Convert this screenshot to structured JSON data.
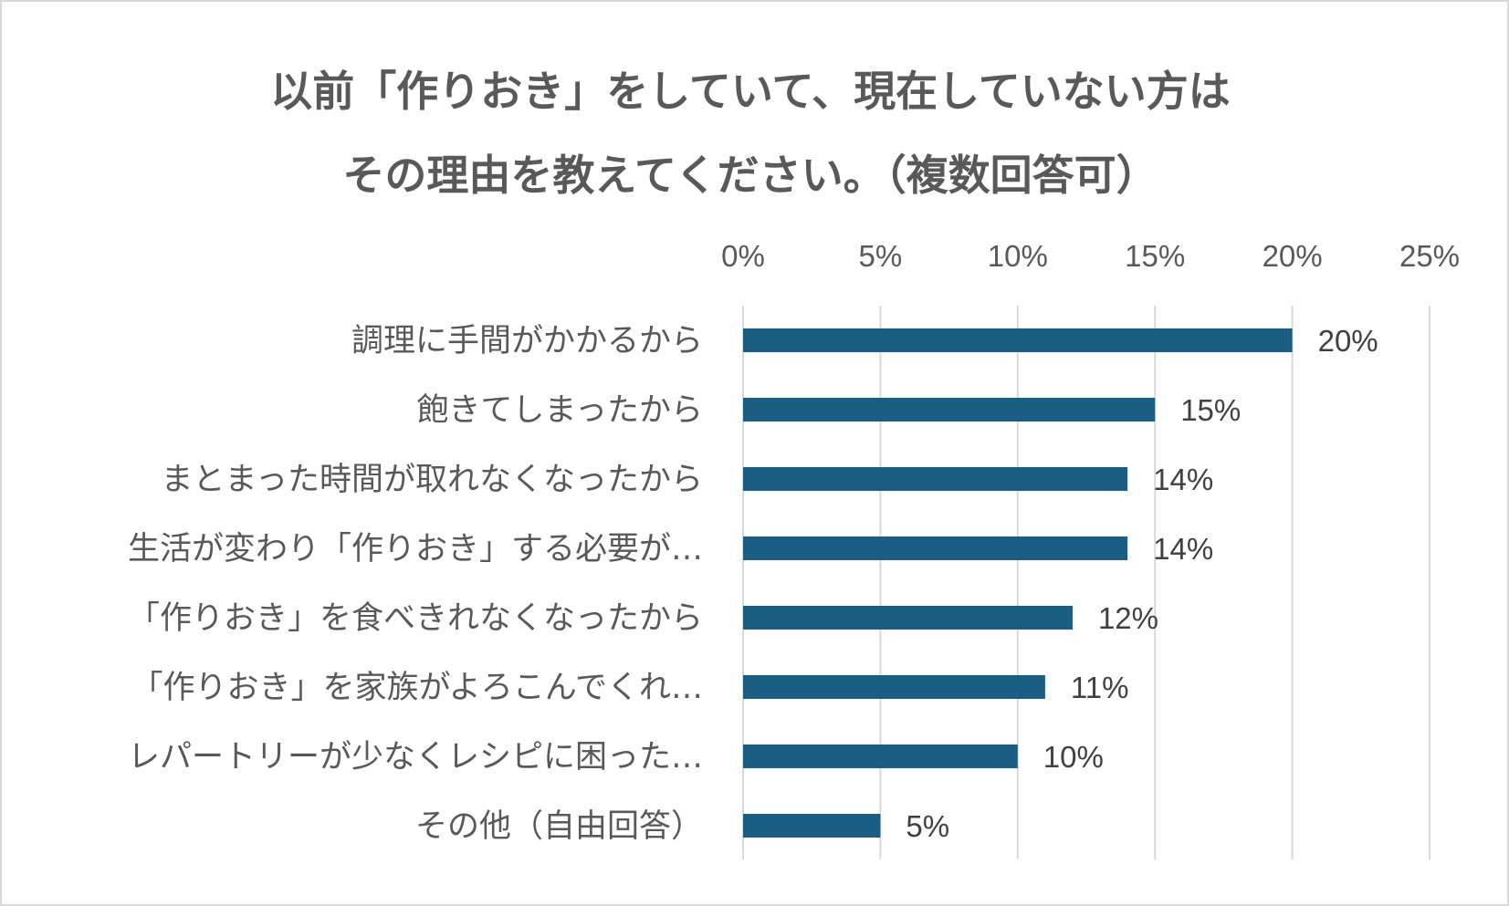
{
  "chart_data": {
    "type": "bar",
    "orientation": "horizontal",
    "title_lines": [
      "以前「作りおき」をしていて、現在していない方は",
      "その理由を教えてください。（複数回答可）"
    ],
    "categories": [
      "調理に手間がかかるから",
      "飽きてしまったから",
      "まとまった時間が取れなくなったから",
      "生活が変わり「作りおき」する必要が…",
      "「作りおき」を食べきれなくなったから",
      "「作りおき」を家族がよろこんでくれ…",
      "レパートリーが少なくレシピに困った…",
      "その他（自由回答）"
    ],
    "values": [
      20,
      15,
      14,
      14,
      12,
      11,
      10,
      5
    ],
    "data_labels": [
      "20%",
      "15%",
      "14%",
      "14%",
      "12%",
      "11%",
      "10%",
      "5%"
    ],
    "x_ticks": [
      0,
      5,
      10,
      15,
      20,
      25
    ],
    "x_tick_labels": [
      "0%",
      "5%",
      "10%",
      "15%",
      "20%",
      "25%"
    ],
    "xlim": [
      0,
      25
    ],
    "axis_position": "top",
    "grid": true,
    "bar_color": "#1a5e83",
    "grid_color": "#d9d9d9"
  }
}
